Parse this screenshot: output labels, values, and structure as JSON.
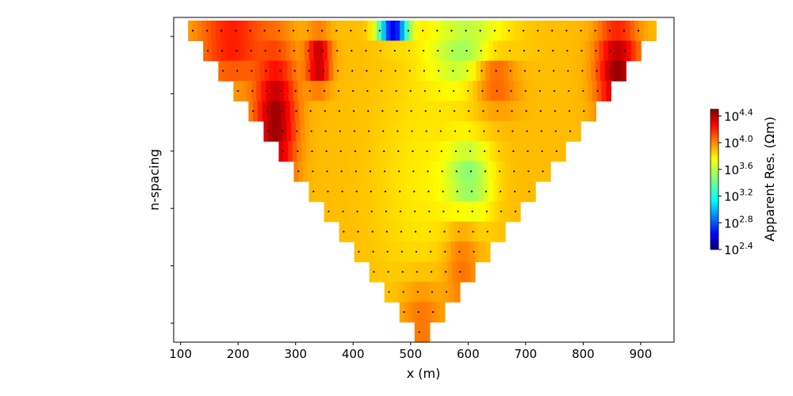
{
  "chart_data": {
    "type": "heatmap",
    "title": "",
    "xlabel": "x (m)",
    "ylabel": "n-spacing",
    "xlim": [
      88,
      958
    ],
    "ylim": [
      0,
      1
    ],
    "x_ticks": [
      100,
      200,
      300,
      400,
      500,
      600,
      700,
      800,
      900
    ],
    "y_tick_count": 6,
    "colormap": "jet",
    "colorbar": {
      "label": "Apparent Res. (Ωm)",
      "log_min": 2.4,
      "log_max": 4.5,
      "ticks": [
        {
          "value": 2.4,
          "base": "10",
          "exp": "2.4"
        },
        {
          "value": 2.8,
          "base": "10",
          "exp": "2.8"
        },
        {
          "value": 3.2,
          "base": "10",
          "exp": "3.2"
        },
        {
          "value": 3.6,
          "base": "10",
          "exp": "3.6"
        },
        {
          "value": 4.0,
          "base": "10",
          "exp": "4.0"
        },
        {
          "value": 4.4,
          "base": "10",
          "exp": "4.4"
        }
      ]
    },
    "pseudosection": {
      "x_range": [
        100,
        940
      ],
      "apex_x": 520,
      "n_levels": 16,
      "background_log_res": 3.85,
      "zones": [
        {
          "x": 265,
          "n": 5,
          "log_res": 4.45,
          "spread_x": 35,
          "spread_n": 3.5
        },
        {
          "x": 340,
          "n": 2,
          "log_res": 4.45,
          "spread_x": 20,
          "spread_n": 1.2
        },
        {
          "x": 860,
          "n": 2.5,
          "log_res": 4.45,
          "spread_x": 35,
          "spread_n": 2.5
        },
        {
          "x": 190,
          "n": 1,
          "log_res": 4.2,
          "spread_x": 60,
          "spread_n": 2
        },
        {
          "x": 520,
          "n": 8,
          "log_res": 3.75,
          "spread_x": 80,
          "spread_n": 6
        },
        {
          "x": 600,
          "n": 1.5,
          "log_res": 3.5,
          "spread_x": 70,
          "spread_n": 2
        },
        {
          "x": 600,
          "n": 8,
          "log_res": 3.45,
          "spread_x": 40,
          "spread_n": 2
        },
        {
          "x": 470,
          "n": 0.3,
          "log_res": 2.5,
          "spread_x": 25,
          "spread_n": 0.6
        },
        {
          "x": 650,
          "n": 3,
          "log_res": 4.05,
          "spread_x": 40,
          "spread_n": 1.5
        },
        {
          "x": 520,
          "n": 15,
          "log_res": 4.0,
          "spread_x": 40,
          "spread_n": 2
        },
        {
          "x": 590,
          "n": 12.5,
          "log_res": 4.0,
          "spread_x": 30,
          "spread_n": 2.5
        }
      ]
    }
  }
}
